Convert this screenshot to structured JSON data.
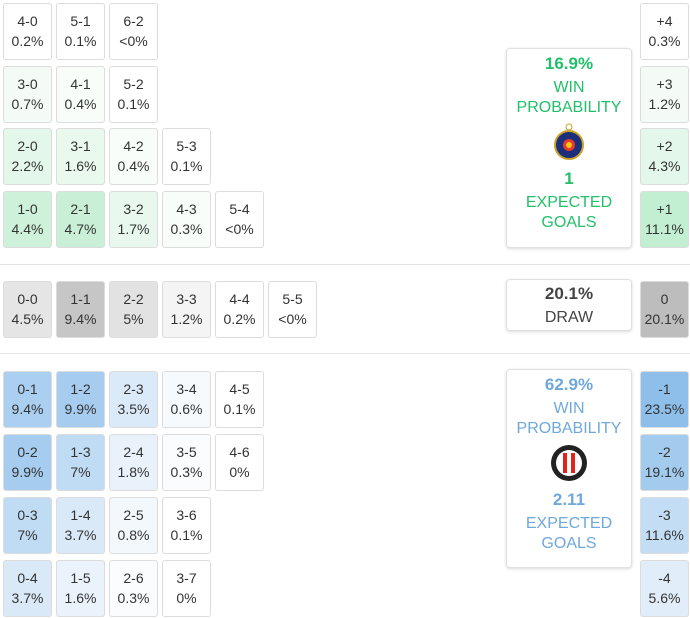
{
  "home": {
    "rows": [
      [
        {
          "score": "4-0",
          "prob": "0.2%",
          "color": "#ffffff"
        },
        {
          "score": "5-1",
          "prob": "0.1%",
          "color": "#ffffff"
        },
        {
          "score": "6-2",
          "prob": "<0%",
          "color": "#ffffff"
        }
      ],
      [
        {
          "score": "3-0",
          "prob": "0.7%",
          "color": "#f4fbf6"
        },
        {
          "score": "4-1",
          "prob": "0.4%",
          "color": "#f8fdf9"
        },
        {
          "score": "5-2",
          "prob": "0.1%",
          "color": "#ffffff"
        }
      ],
      [
        {
          "score": "2-0",
          "prob": "2.2%",
          "color": "#e3f7ea"
        },
        {
          "score": "3-1",
          "prob": "1.6%",
          "color": "#e9f9ee"
        },
        {
          "score": "4-2",
          "prob": "0.4%",
          "color": "#f8fdf9"
        },
        {
          "score": "5-3",
          "prob": "0.1%",
          "color": "#ffffff"
        }
      ],
      [
        {
          "score": "1-0",
          "prob": "4.4%",
          "color": "#cdf1d9"
        },
        {
          "score": "2-1",
          "prob": "4.7%",
          "color": "#c9f0d6"
        },
        {
          "score": "3-2",
          "prob": "1.7%",
          "color": "#e8f8ee"
        },
        {
          "score": "4-3",
          "prob": "0.3%",
          "color": "#f9fdfa"
        },
        {
          "score": "5-4",
          "prob": "<0%",
          "color": "#ffffff"
        }
      ]
    ],
    "margins": [
      {
        "label": "+4",
        "prob": "0.3%",
        "color": "#ffffff"
      },
      {
        "label": "+3",
        "prob": "1.2%",
        "color": "#f4fbf6"
      },
      {
        "label": "+2",
        "prob": "4.3%",
        "color": "#e3f7ea"
      },
      {
        "label": "+1",
        "prob": "11.1%",
        "color": "#c2eed1"
      }
    ],
    "summary": {
      "win": "16.9%",
      "win_label": "WIN PROBABILITY",
      "xg": "1",
      "xg_label": "EXPECTED GOALS"
    }
  },
  "draw": {
    "cells": [
      {
        "score": "0-0",
        "prob": "4.5%",
        "color": "#e5e5e5"
      },
      {
        "score": "1-1",
        "prob": "9.4%",
        "color": "#c6c6c6"
      },
      {
        "score": "2-2",
        "prob": "5%",
        "color": "#e2e2e2"
      },
      {
        "score": "3-3",
        "prob": "1.2%",
        "color": "#f4f4f4"
      },
      {
        "score": "4-4",
        "prob": "0.2%",
        "color": "#ffffff"
      },
      {
        "score": "5-5",
        "prob": "<0%",
        "color": "#ffffff"
      }
    ],
    "margin": {
      "label": "0",
      "prob": "20.1%",
      "color": "#bdbdbd"
    },
    "summary": {
      "prob": "20.1%",
      "label": "DRAW"
    }
  },
  "away": {
    "rows": [
      [
        {
          "score": "0-1",
          "prob": "9.4%",
          "color": "#aacff0"
        },
        {
          "score": "1-2",
          "prob": "9.9%",
          "color": "#a6ccef"
        },
        {
          "score": "2-3",
          "prob": "3.5%",
          "color": "#dbeaf8"
        },
        {
          "score": "3-4",
          "prob": "0.6%",
          "color": "#f6fafd"
        },
        {
          "score": "4-5",
          "prob": "0.1%",
          "color": "#ffffff"
        }
      ],
      [
        {
          "score": "0-2",
          "prob": "9.9%",
          "color": "#a6ccef"
        },
        {
          "score": "1-3",
          "prob": "7%",
          "color": "#c0dcf4"
        },
        {
          "score": "2-4",
          "prob": "1.8%",
          "color": "#e9f2fb"
        },
        {
          "score": "3-5",
          "prob": "0.3%",
          "color": "#fafcfe"
        },
        {
          "score": "4-6",
          "prob": "0%",
          "color": "#ffffff"
        }
      ],
      [
        {
          "score": "0-3",
          "prob": "7%",
          "color": "#c0dcf4"
        },
        {
          "score": "1-4",
          "prob": "3.7%",
          "color": "#d9e9f8"
        },
        {
          "score": "2-5",
          "prob": "0.8%",
          "color": "#f3f8fd"
        },
        {
          "score": "3-6",
          "prob": "0.1%",
          "color": "#ffffff"
        }
      ],
      [
        {
          "score": "0-4",
          "prob": "3.7%",
          "color": "#d9e9f8"
        },
        {
          "score": "1-5",
          "prob": "1.6%",
          "color": "#eaf3fb"
        },
        {
          "score": "2-6",
          "prob": "0.3%",
          "color": "#fafcfe"
        },
        {
          "score": "3-7",
          "prob": "0%",
          "color": "#ffffff"
        }
      ]
    ],
    "margins": [
      {
        "label": "-1",
        "prob": "23.5%",
        "color": "#8ebfea"
      },
      {
        "label": "-2",
        "prob": "19.1%",
        "color": "#a3cbee"
      },
      {
        "label": "-3",
        "prob": "11.6%",
        "color": "#c3ddf4"
      },
      {
        "label": "-4",
        "prob": "5.6%",
        "color": "#e1eef9"
      }
    ],
    "summary": {
      "win": "62.9%",
      "win_label": "WIN PROBABILITY",
      "xg": "2.11",
      "xg_label": "EXPECTED GOALS"
    }
  }
}
